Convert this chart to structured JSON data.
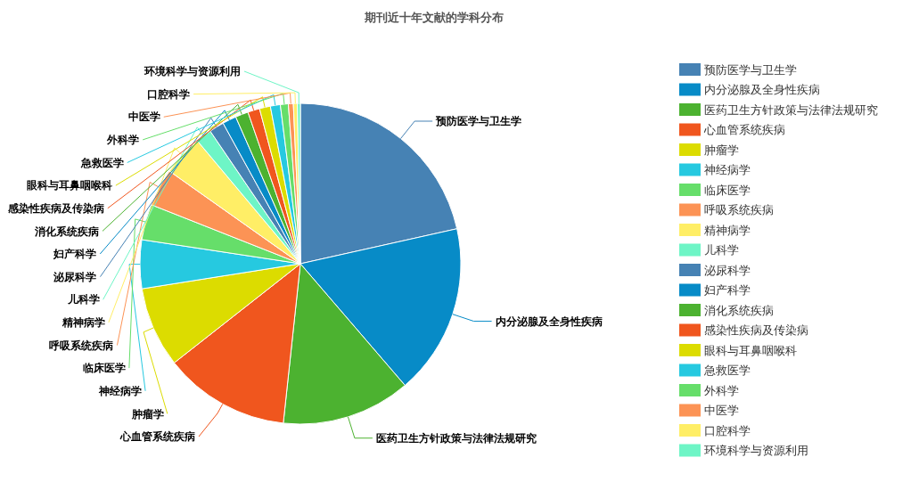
{
  "chart_data": {
    "type": "pie",
    "title": "期刊近十年文献的学科分布",
    "categories": [
      "预防医学与卫生学",
      "内分泌腺及全身性疾病",
      "医药卫生方针政策与法律法规研究",
      "心血管系统疾病",
      "肿瘤学",
      "神经病学",
      "临床医学",
      "呼吸系统疾病",
      "精神病学",
      "儿科学",
      "泌尿科学",
      "妇产科学",
      "消化系统疾病",
      "感染性疾病及传染病",
      "眼科与耳鼻咽喉科",
      "急救医学",
      "外科学",
      "中医学",
      "口腔科学",
      "环境科学与资源利用"
    ],
    "values": [
      21.5,
      17.2,
      13,
      12.7,
      8.1,
      4.9,
      3.6,
      3.8,
      4.1,
      1.6,
      1.5,
      1.4,
      1.3,
      1.2,
      1.1,
      1,
      0.8,
      0.5,
      0.4,
      0.3
    ],
    "colors": [
      "#4682b4",
      "#078bc7",
      "#4cb230",
      "#f0561e",
      "#dcdc00",
      "#26c9e0",
      "#66de6a",
      "#fc9355",
      "#ffee66",
      "#6ef5c6",
      "#4682b4",
      "#078bc7",
      "#4cb230",
      "#f0561e",
      "#dcdc00",
      "#26c9e0",
      "#66de6a",
      "#fc9355",
      "#ffee66",
      "#6ef5c6"
    ],
    "legend": "right"
  }
}
